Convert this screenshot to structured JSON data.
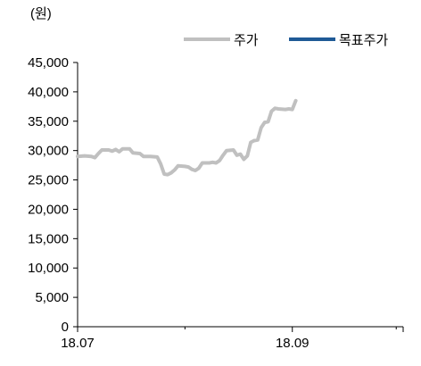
{
  "chart_data": {
    "type": "line",
    "unit_label": "(원)",
    "ylim": [
      0,
      45000
    ],
    "y_ticks": [
      "0",
      "5,000",
      "10,000",
      "15,000",
      "20,000",
      "25,000",
      "30,000",
      "35,000",
      "40,000",
      "45,000"
    ],
    "y_tick_values": [
      0,
      5000,
      10000,
      15000,
      20000,
      25000,
      30000,
      35000,
      40000,
      45000
    ],
    "x_ticks": [
      {
        "label": "18.07",
        "date": "2018-07-01"
      },
      {
        "label": "18.09",
        "date": "2018-09-01"
      }
    ],
    "xlim": [
      "2018-07-01",
      "2018-10-03"
    ],
    "grid": false,
    "legend_position": "top-right",
    "series": [
      {
        "name": "주가",
        "color": "#c0c0c0",
        "points": [
          [
            "2018-07-01",
            29000
          ],
          [
            "2018-07-03",
            29100
          ],
          [
            "2018-07-05",
            29000
          ],
          [
            "2018-07-06",
            28800
          ],
          [
            "2018-07-07",
            29500
          ],
          [
            "2018-07-08",
            30100
          ],
          [
            "2018-07-10",
            30100
          ],
          [
            "2018-07-11",
            29900
          ],
          [
            "2018-07-12",
            30200
          ],
          [
            "2018-07-13",
            29800
          ],
          [
            "2018-07-14",
            30300
          ],
          [
            "2018-07-16",
            30300
          ],
          [
            "2018-07-17",
            29600
          ],
          [
            "2018-07-19",
            29500
          ],
          [
            "2018-07-20",
            29000
          ],
          [
            "2018-07-22",
            29000
          ],
          [
            "2018-07-24",
            28900
          ],
          [
            "2018-07-25",
            27700
          ],
          [
            "2018-07-26",
            26000
          ],
          [
            "2018-07-27",
            25900
          ],
          [
            "2018-07-28",
            26200
          ],
          [
            "2018-07-29",
            26700
          ],
          [
            "2018-07-30",
            27400
          ],
          [
            "2018-08-01",
            27300
          ],
          [
            "2018-08-02",
            27200
          ],
          [
            "2018-08-03",
            26800
          ],
          [
            "2018-08-04",
            26600
          ],
          [
            "2018-08-05",
            27000
          ],
          [
            "2018-08-06",
            27900
          ],
          [
            "2018-08-08",
            27900
          ],
          [
            "2018-08-09",
            28000
          ],
          [
            "2018-08-10",
            27900
          ],
          [
            "2018-08-11",
            28300
          ],
          [
            "2018-08-12",
            29200
          ],
          [
            "2018-08-13",
            30000
          ],
          [
            "2018-08-15",
            30100
          ],
          [
            "2018-08-16",
            29200
          ],
          [
            "2018-08-17",
            29400
          ],
          [
            "2018-08-18",
            28500
          ],
          [
            "2018-08-19",
            29100
          ],
          [
            "2018-08-20",
            31400
          ],
          [
            "2018-08-21",
            31700
          ],
          [
            "2018-08-22",
            31800
          ],
          [
            "2018-08-23",
            33900
          ],
          [
            "2018-08-24",
            34800
          ],
          [
            "2018-08-25",
            34900
          ],
          [
            "2018-08-26",
            36700
          ],
          [
            "2018-08-27",
            37200
          ],
          [
            "2018-08-28",
            37100
          ],
          [
            "2018-08-30",
            37000
          ],
          [
            "2018-08-31",
            37100
          ],
          [
            "2018-09-01",
            37000
          ],
          [
            "2018-09-02",
            38500
          ]
        ]
      },
      {
        "name": "목표주가",
        "color": "#1f5a96",
        "points": []
      }
    ]
  }
}
